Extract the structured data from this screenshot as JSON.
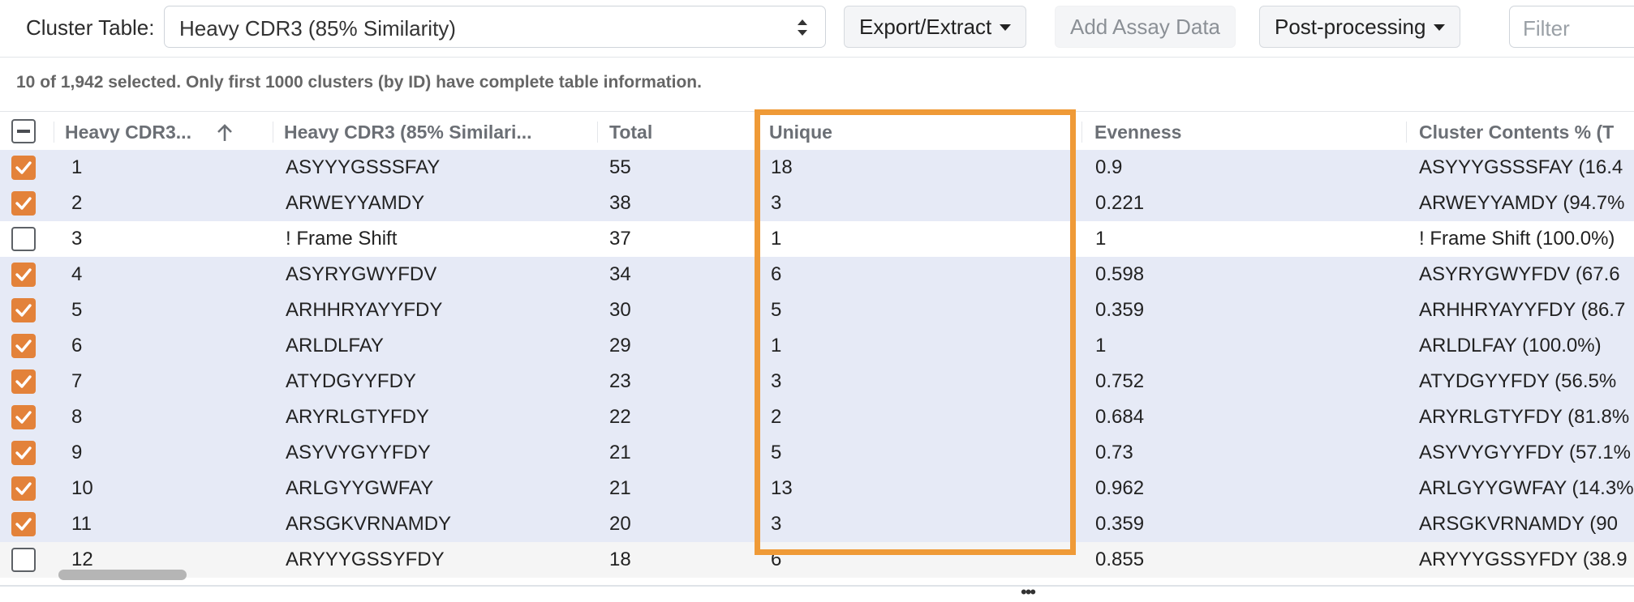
{
  "toolbar": {
    "cluster_table_label": "Cluster Table:",
    "cluster_table_value": "Heavy CDR3 (85% Similarity)",
    "export_label": "Export/Extract",
    "add_assay_label": "Add Assay Data",
    "postprocessing_label": "Post-processing",
    "filter_placeholder": "Filter"
  },
  "status_text": "10 of 1,942 selected. Only first 1000 clusters (by ID) have complete table information.",
  "columns": [
    "Heavy CDR3...",
    "Heavy CDR3 (85% Similari...",
    "Total",
    "Unique",
    "Evenness",
    "Cluster Contents % (T"
  ],
  "rows": [
    {
      "id": "1",
      "cdr3": "ASYYYGSSSFAY",
      "total": "55",
      "unique": "18",
      "evenness": "0.9",
      "contents": "ASYYYGSSSFAY (16.4",
      "checked": true
    },
    {
      "id": "2",
      "cdr3": "ARWEYYAMDY",
      "total": "38",
      "unique": "3",
      "evenness": "0.221",
      "contents": "ARWEYYAMDY (94.7%",
      "checked": true
    },
    {
      "id": "3",
      "cdr3": "! Frame Shift",
      "total": "37",
      "unique": "1",
      "evenness": "1",
      "contents": "! Frame Shift (100.0%)",
      "checked": false
    },
    {
      "id": "4",
      "cdr3": "ASYRYGWYFDV",
      "total": "34",
      "unique": "6",
      "evenness": "0.598",
      "contents": "ASYRYGWYFDV (67.6",
      "checked": true
    },
    {
      "id": "5",
      "cdr3": "ARHHRYAYYFDY",
      "total": "30",
      "unique": "5",
      "evenness": "0.359",
      "contents": "ARHHRYAYYFDY (86.7",
      "checked": true
    },
    {
      "id": "6",
      "cdr3": "ARLDLFAY",
      "total": "29",
      "unique": "1",
      "evenness": "1",
      "contents": "ARLDLFAY (100.0%)",
      "checked": true
    },
    {
      "id": "7",
      "cdr3": "ATYDGYYFDY",
      "total": "23",
      "unique": "3",
      "evenness": "0.752",
      "contents": "ATYDGYYFDY (56.5%",
      "checked": true
    },
    {
      "id": "8",
      "cdr3": "ARYRLGTYFDY",
      "total": "22",
      "unique": "2",
      "evenness": "0.684",
      "contents": "ARYRLGTYFDY (81.8%",
      "checked": true
    },
    {
      "id": "9",
      "cdr3": "ASYVYGYYFDY",
      "total": "21",
      "unique": "5",
      "evenness": "0.73",
      "contents": "ASYVYGYYFDY (57.1%",
      "checked": true
    },
    {
      "id": "10",
      "cdr3": "ARLGYYGWFAY",
      "total": "21",
      "unique": "13",
      "evenness": "0.962",
      "contents": "ARLGYYGWFAY (14.3%",
      "checked": true
    },
    {
      "id": "11",
      "cdr3": "ARSGKVRNAMDY",
      "total": "20",
      "unique": "3",
      "evenness": "0.359",
      "contents": "ARSGKVRNAMDY (90",
      "checked": true
    },
    {
      "id": "12",
      "cdr3": "ARYYYGSSYFDY",
      "total": "18",
      "unique": "6",
      "evenness": "0.855",
      "contents": "ARYYYGSSYFDY (38.9",
      "checked": false
    }
  ],
  "colors": {
    "accent": "#e3823a",
    "highlight_border": "#ef9a37",
    "selected_row": "#e6eaf6"
  }
}
